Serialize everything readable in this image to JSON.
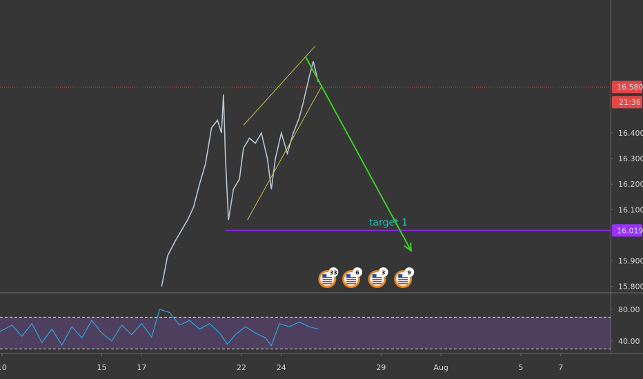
{
  "chart_data": {
    "type": "line",
    "title": "",
    "xlabel": "",
    "ylabel": "",
    "x_ticks": [
      {
        "label": "10",
        "day": 10
      },
      {
        "label": "15",
        "day": 15
      },
      {
        "label": "17",
        "day": 17
      },
      {
        "label": "22",
        "day": 22
      },
      {
        "label": "24",
        "day": 24
      },
      {
        "label": "29",
        "day": 29
      },
      {
        "label": "Aug",
        "day": 32
      },
      {
        "label": "5",
        "day": 36
      },
      {
        "label": "7",
        "day": 38
      }
    ],
    "xlim": [
      9.9,
      40.5
    ],
    "y_ticks": [
      "16.400",
      "16.300",
      "16.200",
      "16.100",
      "15.900",
      "15.800"
    ],
    "ylim": [
      15.775,
      16.92
    ],
    "price_series": [
      {
        "day": 18.0,
        "value": 15.8
      },
      {
        "day": 18.3,
        "value": 15.92
      },
      {
        "day": 18.7,
        "value": 15.98
      },
      {
        "day": 19.0,
        "value": 16.02
      },
      {
        "day": 19.3,
        "value": 16.06
      },
      {
        "day": 19.6,
        "value": 16.11
      },
      {
        "day": 19.9,
        "value": 16.2
      },
      {
        "day": 20.2,
        "value": 16.28
      },
      {
        "day": 20.5,
        "value": 16.42
      },
      {
        "day": 20.8,
        "value": 16.45
      },
      {
        "day": 21.0,
        "value": 16.4
      },
      {
        "day": 21.1,
        "value": 16.55
      },
      {
        "day": 21.2,
        "value": 16.3
      },
      {
        "day": 21.35,
        "value": 16.06
      },
      {
        "day": 21.6,
        "value": 16.18
      },
      {
        "day": 21.9,
        "value": 16.22
      },
      {
        "day": 22.1,
        "value": 16.34
      },
      {
        "day": 22.4,
        "value": 16.38
      },
      {
        "day": 22.7,
        "value": 16.36
      },
      {
        "day": 23.0,
        "value": 16.4
      },
      {
        "day": 23.3,
        "value": 16.3
      },
      {
        "day": 23.5,
        "value": 16.18
      },
      {
        "day": 23.7,
        "value": 16.3
      },
      {
        "day": 24.0,
        "value": 16.4
      },
      {
        "day": 24.3,
        "value": 16.32
      },
      {
        "day": 24.6,
        "value": 16.4
      },
      {
        "day": 24.9,
        "value": 16.46
      },
      {
        "day": 25.1,
        "value": 16.52
      },
      {
        "day": 25.4,
        "value": 16.62
      },
      {
        "day": 25.6,
        "value": 16.68
      },
      {
        "day": 25.85,
        "value": 16.6
      }
    ],
    "channel": [
      {
        "from": {
          "day": 22.1,
          "value": 16.43
        },
        "to": {
          "day": 25.7,
          "value": 16.74
        }
      },
      {
        "from": {
          "day": 22.3,
          "value": 16.06
        },
        "to": {
          "day": 26.0,
          "value": 16.58
        }
      }
    ],
    "projection_arrow": {
      "from": {
        "day": 25.2,
        "value": 16.7
      },
      "to": {
        "day": 30.5,
        "value": 15.94
      }
    },
    "current_price": 16.58,
    "current_price_label": "16.580",
    "countdown": "21:36",
    "target_level": 16.019,
    "target_label": "16.019",
    "target_text": "target 1",
    "target_start_day": 21.2,
    "event_badges": [
      {
        "day": 26.3,
        "count": "33"
      },
      {
        "day": 27.5,
        "count": "6"
      },
      {
        "day": 28.8,
        "count": "3"
      },
      {
        "day": 30.1,
        "count": "9"
      }
    ],
    "rsi": {
      "y_ticks": [
        "80.00",
        "40.00"
      ],
      "ylim": [
        25,
        100
      ],
      "overbought": 70,
      "oversold": 30,
      "series": [
        {
          "day": 9.9,
          "value": 52
        },
        {
          "day": 10.5,
          "value": 60
        },
        {
          "day": 11.0,
          "value": 46
        },
        {
          "day": 11.5,
          "value": 62
        },
        {
          "day": 12.0,
          "value": 38
        },
        {
          "day": 12.5,
          "value": 55
        },
        {
          "day": 13.0,
          "value": 35
        },
        {
          "day": 13.5,
          "value": 58
        },
        {
          "day": 14.0,
          "value": 44
        },
        {
          "day": 14.5,
          "value": 66
        },
        {
          "day": 15.0,
          "value": 50
        },
        {
          "day": 15.5,
          "value": 40
        },
        {
          "day": 16.0,
          "value": 60
        },
        {
          "day": 16.5,
          "value": 48
        },
        {
          "day": 17.0,
          "value": 62
        },
        {
          "day": 17.5,
          "value": 45
        },
        {
          "day": 17.9,
          "value": 80
        },
        {
          "day": 18.4,
          "value": 76
        },
        {
          "day": 18.9,
          "value": 60
        },
        {
          "day": 19.4,
          "value": 66
        },
        {
          "day": 19.9,
          "value": 55
        },
        {
          "day": 20.4,
          "value": 62
        },
        {
          "day": 20.9,
          "value": 50
        },
        {
          "day": 21.3,
          "value": 36
        },
        {
          "day": 21.7,
          "value": 48
        },
        {
          "day": 22.2,
          "value": 58
        },
        {
          "day": 22.7,
          "value": 50
        },
        {
          "day": 23.2,
          "value": 44
        },
        {
          "day": 23.5,
          "value": 34
        },
        {
          "day": 23.9,
          "value": 62
        },
        {
          "day": 24.4,
          "value": 58
        },
        {
          "day": 24.9,
          "value": 64
        },
        {
          "day": 25.4,
          "value": 58
        },
        {
          "day": 25.85,
          "value": 55
        }
      ]
    },
    "colors": {
      "background": "#363636",
      "candle_line": "#b9c7d6",
      "up": "#b9c7d6",
      "down": "#e07a7a",
      "price_line": "#e0524f",
      "price_label_bg": "#e04848",
      "channel": "#c8c24a",
      "arrow": "#3ad123",
      "target_line": "#8a2be2",
      "target_text": "#22c3c3",
      "target_label_bg": "#9b30ff",
      "rsi_line": "#2aa7e0",
      "rsi_band": "#4f3f5e",
      "axis_text": "#d6d6d6",
      "divider": "#6a6a6a",
      "badge_ring": "#e38a1d"
    }
  }
}
